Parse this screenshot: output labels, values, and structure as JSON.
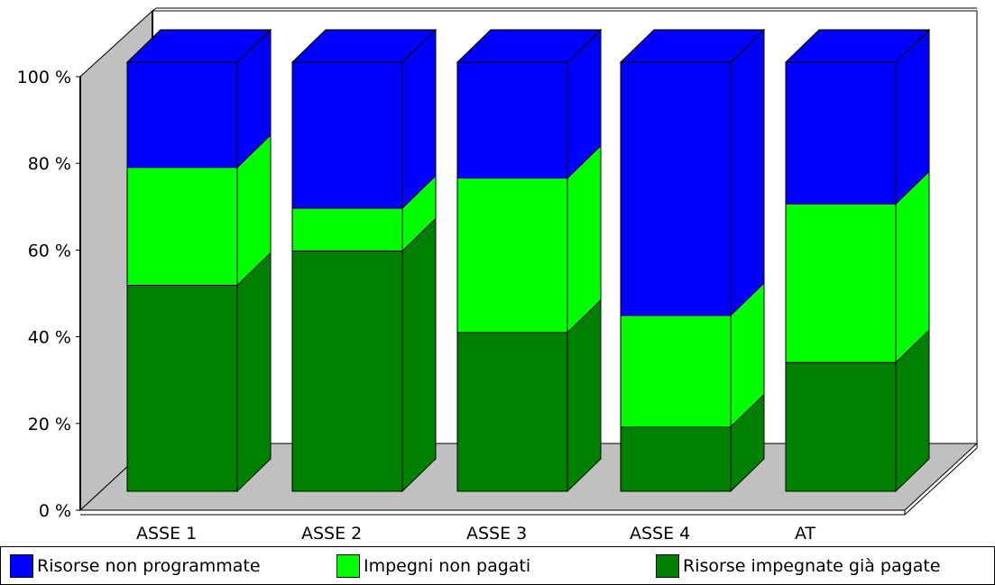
{
  "chart_data": {
    "type": "bar",
    "stacked": true,
    "stack_mode": "percent",
    "three_d": true,
    "categories": [
      "ASSE 1",
      "ASSE 2",
      "ASSE 3",
      "ASSE 4",
      "AT"
    ],
    "yticks": [
      "0 %",
      "20 %",
      "40 %",
      "60 %",
      "80 %",
      "100 %"
    ],
    "ylim": [
      0,
      100
    ],
    "series": [
      {
        "name": "Risorse impegnate già pagate",
        "color": "#008000",
        "values": [
          48,
          56,
          37,
          15,
          30
        ]
      },
      {
        "name": "Impegni non pagati",
        "color": "#00ff00",
        "values": [
          27.5,
          10,
          36,
          26,
          37
        ]
      },
      {
        "name": "Risorse non programmate",
        "color": "#0000ff",
        "values": [
          24.5,
          34,
          27,
          59,
          33
        ]
      }
    ],
    "legend": [
      "Risorse non programmate",
      "Impegni non pagati",
      "Risorse impegnate già pagate"
    ],
    "legend_position": "bottom",
    "grid": false
  }
}
